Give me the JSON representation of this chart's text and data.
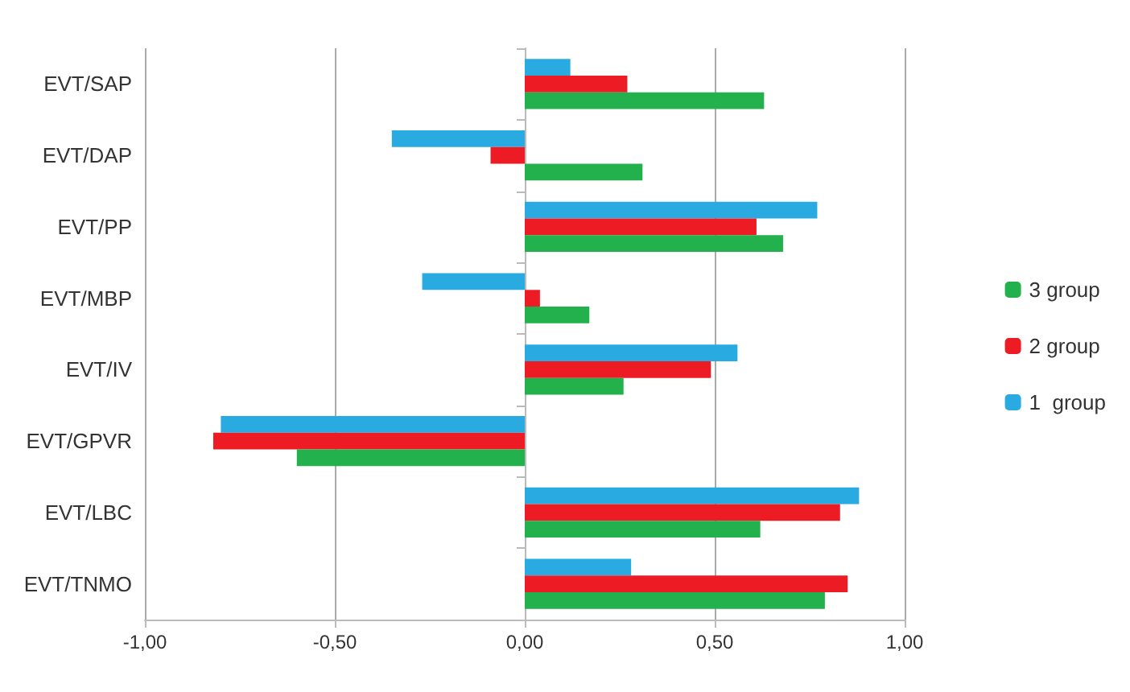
{
  "chart_data": {
    "type": "bar",
    "orientation": "horizontal",
    "categories": [
      "EVT/SAP",
      "EVT/DAP",
      "EVT/PP",
      "EVT/MBP",
      "EVT/IV",
      "EVT/GPVR",
      "EVT/LBC",
      "EVT/TNMO"
    ],
    "series": [
      {
        "name": "3 group",
        "color": "#22b14c",
        "values": [
          0.63,
          0.31,
          0.68,
          0.17,
          0.26,
          -0.6,
          0.62,
          0.79
        ]
      },
      {
        "name": "2 group",
        "color": "#ed1c24",
        "values": [
          0.27,
          -0.09,
          0.61,
          0.04,
          0.49,
          -0.82,
          0.83,
          0.85
        ]
      },
      {
        "name": "1  group",
        "color": "#29abe2",
        "values": [
          0.12,
          -0.35,
          0.77,
          -0.27,
          0.56,
          -0.8,
          0.88,
          0.28
        ]
      }
    ],
    "xlim": [
      -1,
      1
    ],
    "xticks": [
      {
        "value": -1,
        "label": "-1,00"
      },
      {
        "value": -0.5,
        "label": "-0,50"
      },
      {
        "value": 0,
        "label": "0,00"
      },
      {
        "value": 0.5,
        "label": "0,50"
      },
      {
        "value": 1,
        "label": "1,00"
      }
    ],
    "grid": "x",
    "legend": "right"
  }
}
